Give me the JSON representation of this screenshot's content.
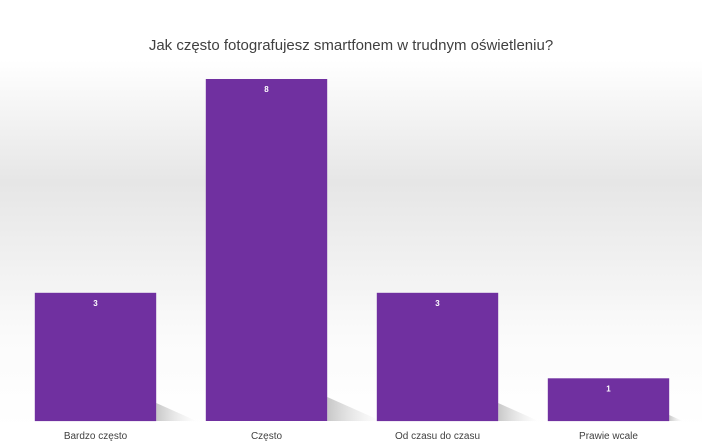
{
  "chart_data": {
    "type": "bar",
    "title": "Jak często fotografujesz smartfonem w trudnym oświetleniu?",
    "categories": [
      "Bardzo często",
      "Często",
      "Od czasu do czasu",
      "Prawie wcale"
    ],
    "values": [
      3,
      8,
      3,
      1
    ],
    "data_labels": [
      "3",
      "8",
      "3",
      "1"
    ],
    "xlabel": "",
    "ylabel": "",
    "ylim": [
      0,
      8
    ],
    "grid": false,
    "legend": "none",
    "bar_color": "#7030a0",
    "label_color": "#ffffff",
    "text_color": "#404040"
  }
}
